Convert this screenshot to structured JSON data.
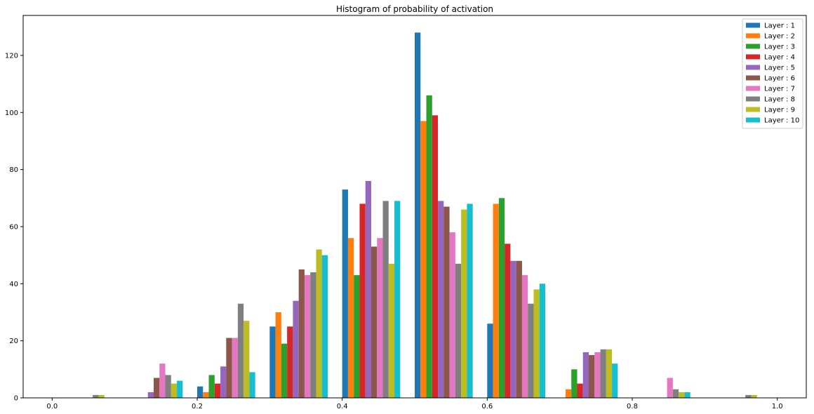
{
  "chart_data": {
    "type": "bar",
    "title": "Histogram of probability of activation",
    "xlabel": "",
    "ylabel": "",
    "xlim": [
      -0.04,
      1.04
    ],
    "ylim": [
      0,
      134
    ],
    "grid": false,
    "legend_position": "top-right",
    "bin_width": 0.1,
    "bar_width": 0.008,
    "x_ticks": [
      0.0,
      0.2,
      0.4,
      0.6,
      0.8,
      1.0
    ],
    "x_tick_labels": [
      "0.0",
      "0.2",
      "0.4",
      "0.6",
      "0.8",
      "1.0"
    ],
    "y_ticks": [
      0,
      20,
      40,
      60,
      80,
      100,
      120
    ],
    "y_tick_labels": [
      "0",
      "20",
      "40",
      "60",
      "80",
      "100",
      "120"
    ],
    "bin_starts": [
      0.0,
      0.1,
      0.2,
      0.3,
      0.4,
      0.5,
      0.6,
      0.7,
      0.8,
      0.9
    ],
    "series": [
      {
        "name": "Layer : 1",
        "color": "#1f77b4",
        "values": [
          0,
          0,
          4,
          25,
          73,
          128,
          26,
          0,
          0,
          0
        ]
      },
      {
        "name": "Layer : 2",
        "color": "#ff7f0e",
        "values": [
          0,
          0,
          2,
          30,
          56,
          97,
          68,
          3,
          0,
          0
        ]
      },
      {
        "name": "Layer : 3",
        "color": "#2ca02c",
        "values": [
          0,
          0,
          8,
          19,
          43,
          106,
          70,
          10,
          0,
          0
        ]
      },
      {
        "name": "Layer : 4",
        "color": "#d62728",
        "values": [
          0,
          0,
          5,
          25,
          68,
          99,
          54,
          5,
          0,
          0
        ]
      },
      {
        "name": "Layer : 5",
        "color": "#9467bd",
        "values": [
          0,
          2,
          11,
          34,
          76,
          69,
          48,
          16,
          0,
          0
        ]
      },
      {
        "name": "Layer : 6",
        "color": "#8c564b",
        "values": [
          0,
          7,
          21,
          45,
          53,
          67,
          48,
          15,
          0,
          0
        ]
      },
      {
        "name": "Layer : 7",
        "color": "#e377c2",
        "values": [
          0,
          12,
          21,
          43,
          56,
          58,
          43,
          16,
          7,
          0
        ]
      },
      {
        "name": "Layer : 8",
        "color": "#7f7f7f",
        "values": [
          1,
          8,
          33,
          44,
          69,
          47,
          33,
          17,
          3,
          1
        ]
      },
      {
        "name": "Layer : 9",
        "color": "#bcbd22",
        "values": [
          1,
          5,
          27,
          52,
          47,
          66,
          38,
          17,
          2,
          1
        ]
      },
      {
        "name": "Layer : 10",
        "color": "#17becf",
        "values": [
          0,
          6,
          9,
          50,
          69,
          68,
          40,
          12,
          2,
          0
        ]
      }
    ]
  }
}
